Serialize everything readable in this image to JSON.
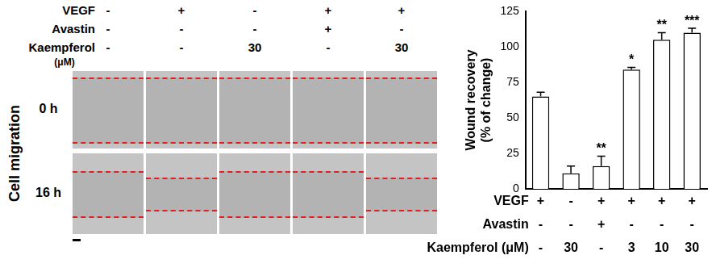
{
  "chart_data": {
    "type": "bar",
    "y_label": "Wound recovery",
    "y_sublabel": "(% of change)",
    "categories": [
      null,
      null,
      null,
      null,
      null,
      null
    ],
    "values": [
      65,
      11,
      16,
      84,
      105,
      110
    ],
    "errors": [
      3,
      5,
      7,
      1.5,
      5,
      3
    ],
    "significance": [
      null,
      null,
      "**",
      "*",
      "**",
      "***"
    ],
    "conditions": [
      {
        "name": "VEGF",
        "values": [
          "+",
          "-",
          "+",
          "+",
          "+",
          "+"
        ]
      },
      {
        "name": "Avastin",
        "values": [
          "-",
          "-",
          "+",
          "-",
          "-",
          "-"
        ]
      },
      {
        "name": "Kaempferol (μM)",
        "values": [
          "-",
          "30",
          "-",
          "3",
          "10",
          "30"
        ]
      }
    ],
    "color": "#ffffff",
    "ylim": [
      0,
      125
    ],
    "yticks": [
      0,
      25,
      50,
      75,
      100,
      125
    ],
    "grid": false
  },
  "micrographs": {
    "conditions": [
      {
        "name": "VEGF",
        "values": [
          "-",
          "+",
          "-",
          "+",
          "+"
        ]
      },
      {
        "name": "Avastin",
        "values": [
          "-",
          "-",
          "-",
          "+",
          "-"
        ]
      },
      {
        "name": "Kaempferol",
        "values": [
          "-",
          "-",
          "30",
          "-",
          "30"
        ]
      }
    ],
    "unit": "(μM)",
    "rows": [
      "0 h",
      "16 h"
    ],
    "row_title": "Cell migration"
  }
}
